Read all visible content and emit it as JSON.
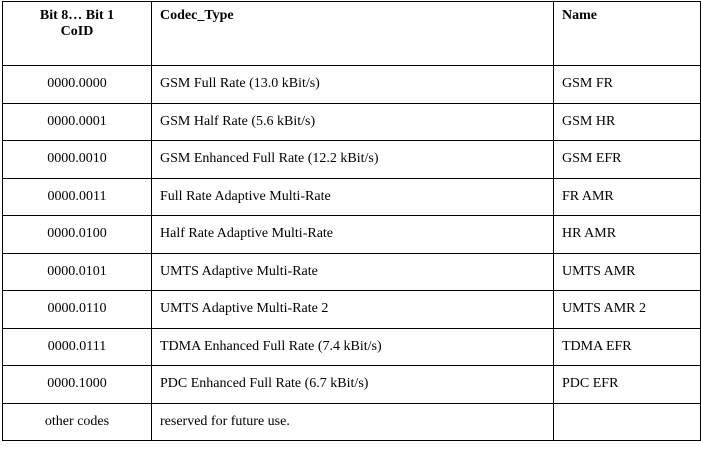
{
  "table": {
    "headers": {
      "coid_line1": "Bit 8… Bit 1",
      "coid_line2": "CoID",
      "codec_type": "Codec_Type",
      "name": "Name"
    },
    "rows": [
      {
        "coid": "0000.0000",
        "codec_type": "GSM Full Rate (13.0 kBit/s)",
        "name": "GSM FR"
      },
      {
        "coid": "0000.0001",
        "codec_type": "GSM Half Rate (5.6 kBit/s)",
        "name": "GSM HR"
      },
      {
        "coid": "0000.0010",
        "codec_type": "GSM Enhanced Full Rate (12.2 kBit/s)",
        "name": "GSM EFR"
      },
      {
        "coid": "0000.0011",
        "codec_type": "Full Rate Adaptive Multi-Rate",
        "name": "FR AMR"
      },
      {
        "coid": "0000.0100",
        "codec_type": "Half Rate Adaptive Multi-Rate",
        "name": "HR AMR"
      },
      {
        "coid": "0000.0101",
        "codec_type": "UMTS Adaptive Multi-Rate",
        "name": "UMTS AMR"
      },
      {
        "coid": "0000.0110",
        "codec_type": "UMTS Adaptive Multi-Rate 2",
        "name": "UMTS AMR 2"
      },
      {
        "coid": "0000.0111",
        "codec_type": "TDMA Enhanced Full Rate (7.4 kBit/s)",
        "name": "TDMA EFR"
      },
      {
        "coid": "0000.1000",
        "codec_type": "PDC Enhanced Full Rate (6.7 kBit/s)",
        "name": "PDC EFR"
      },
      {
        "coid": "other codes",
        "codec_type": "reserved for future use.",
        "name": ""
      }
    ]
  }
}
